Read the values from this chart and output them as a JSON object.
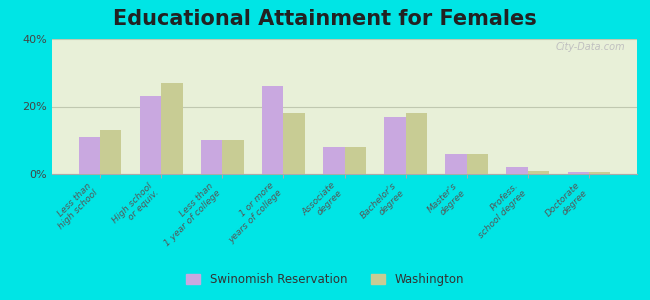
{
  "title": "Educational Attainment for Females",
  "categories": [
    "Less than\nhigh school",
    "High school\nor equiv.",
    "Less than\n1 year of college",
    "1 or more\nyears of college",
    "Associate\ndegree",
    "Bachelor's\ndegree",
    "Master's\ndegree",
    "Profess.\nschool degree",
    "Doctorate\ndegree"
  ],
  "swinomish": [
    11,
    23,
    10,
    26,
    8,
    17,
    6,
    2,
    0.5
  ],
  "washington": [
    13,
    27,
    10,
    18,
    8,
    18,
    6,
    1,
    0.5
  ],
  "swinomish_color": "#c9a8e0",
  "washington_color": "#c8cc94",
  "background_color": "#e8f0d8",
  "outer_background": "#00e5e5",
  "ylim": [
    0,
    40
  ],
  "yticks": [
    0,
    20,
    40
  ],
  "ytick_labels": [
    "0%",
    "20%",
    "40%"
  ],
  "legend_labels": [
    "Swinomish Reservation",
    "Washington"
  ],
  "title_fontsize": 15,
  "bar_width": 0.35,
  "gridcolor": "#c0c8b0"
}
